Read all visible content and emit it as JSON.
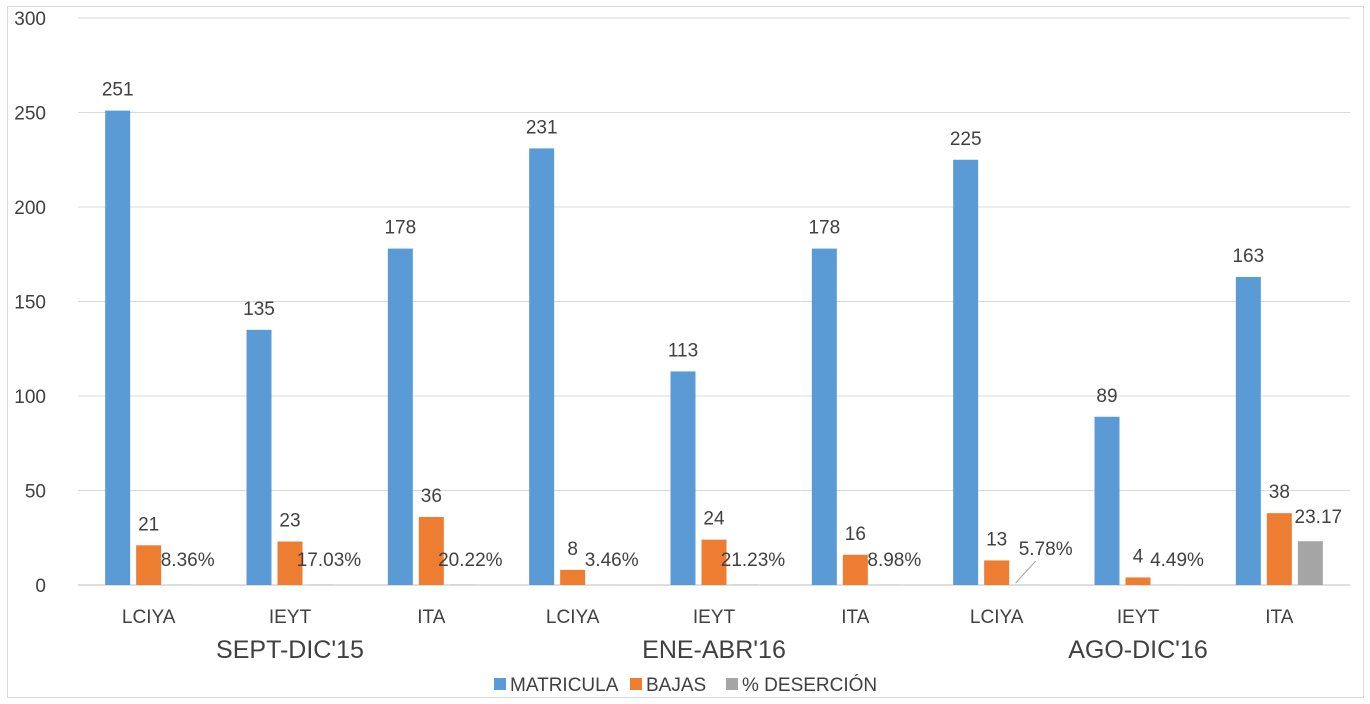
{
  "chart_data": {
    "type": "bar",
    "title": "",
    "xlabel": "",
    "ylabel": "",
    "ylim": [
      0,
      300
    ],
    "yticks": [
      0,
      50,
      100,
      150,
      200,
      250,
      300
    ],
    "grid": true,
    "legend_position": "bottom",
    "groups": [
      {
        "label": "SEPT-DIC'15",
        "categories": [
          "LCIYA",
          "IEYT",
          "ITA"
        ]
      },
      {
        "label": "ENE-ABR'16",
        "categories": [
          "LCIYA",
          "IEYT",
          "ITA"
        ]
      },
      {
        "label": "AGO-DIC'16",
        "categories": [
          "LCIYA",
          "IEYT",
          "ITA"
        ]
      }
    ],
    "categories": [
      "LCIYA",
      "IEYT",
      "ITA",
      "LCIYA",
      "IEYT",
      "ITA",
      "LCIYA",
      "IEYT",
      "ITA"
    ],
    "series": [
      {
        "name": "MATRICULA",
        "color": "#5b9bd5",
        "values": [
          251,
          135,
          178,
          231,
          113,
          178,
          225,
          89,
          163
        ],
        "labels": [
          "251",
          "135",
          "178",
          "231",
          "113",
          "178",
          "225",
          "89",
          "163"
        ]
      },
      {
        "name": "BAJAS",
        "color": "#ed7d31",
        "values": [
          21,
          23,
          36,
          8,
          24,
          16,
          13,
          4,
          38
        ],
        "labels": [
          "21",
          "23",
          "36",
          "8",
          "24",
          "16",
          "13",
          "4",
          "38"
        ]
      },
      {
        "name": "% DESERCIÓN",
        "color": "#a5a5a5",
        "values": [
          0.0836,
          0.1703,
          0.2022,
          0.0346,
          0.2123,
          0.0898,
          0.0578,
          0.0449,
          23.17
        ],
        "labels": [
          "8.36%",
          "17.03%",
          "20.22%",
          "3.46%",
          "21.23%",
          "8.98%",
          "5.78%",
          "4.49%",
          "23.17"
        ]
      }
    ]
  }
}
